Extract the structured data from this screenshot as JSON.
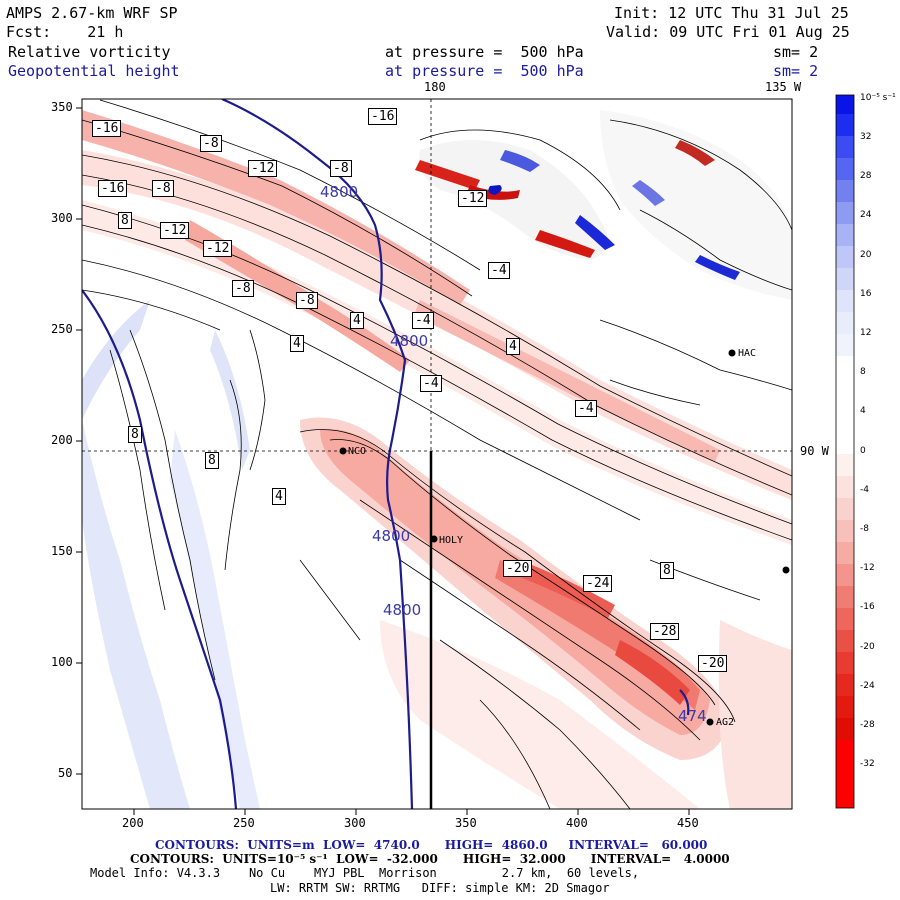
{
  "header": {
    "model": "AMPS 2.67-km WRF SP",
    "init": "Init: 12 UTC Thu 31 Jul 25",
    "fcst": "Fcst:    21 h",
    "valid": "Valid: 09 UTC Fri 01 Aug 25",
    "field1": "Relative vorticity",
    "field1_level": "at pressure =  500 hPa",
    "field1_sm": "sm= 2",
    "field2": "Geopotential height",
    "field2_level": "at pressure =  500 hPa",
    "field2_sm": "sm= 2"
  },
  "map_labels": {
    "top_lon1": "180",
    "top_lon2": "135 W",
    "right_lon": "90 W",
    "stations": [
      "NCO",
      "HOLY",
      "HAC",
      "AG2"
    ]
  },
  "axes": {
    "x_ticks": [
      "200",
      "250",
      "300",
      "350",
      "400",
      "450"
    ],
    "y_ticks": [
      "350",
      "300",
      "250",
      "200",
      "150",
      "100",
      "50"
    ]
  },
  "colorbar": {
    "unit": "10⁻⁵ s⁻¹",
    "levels": [
      "32",
      "28",
      "24",
      "20",
      "16",
      "12",
      "8",
      "4",
      "0",
      "-4",
      "-8",
      "-12",
      "-16",
      "-20",
      "-24",
      "-28",
      "-32"
    ]
  },
  "contour_labels": {
    "height": [
      "4800",
      "4800",
      "4800",
      "4800",
      "474"
    ],
    "vorticity": [
      "-16",
      "-16",
      "-16",
      "-12",
      "-12",
      "-12",
      "-12",
      "-8",
      "-8",
      "-8",
      "-8",
      "-8",
      "-4",
      "-4",
      "-4",
      "-4",
      "4",
      "4",
      "4",
      "4",
      "8",
      "8",
      "8",
      "8",
      "-20",
      "-20",
      "-24",
      "-28"
    ]
  },
  "footer": {
    "line1": "CONTOURS:  UNITS=m  LOW=  4740.0      HIGH=  4860.0     INTERVAL=   60.000",
    "line2": "CONTOURS:  UNITS=10⁻⁵ s⁻¹  LOW=  -32.000      HIGH=  32.000      INTERVAL=   4.0000",
    "line3": "Model Info: V4.3.3    No Cu    MYJ PBL  Morrison         2.7 km,  60 levels,",
    "line4": "LW: RRTM SW: RRTMG   DIFF: simple KM: 2D Smagor"
  }
}
